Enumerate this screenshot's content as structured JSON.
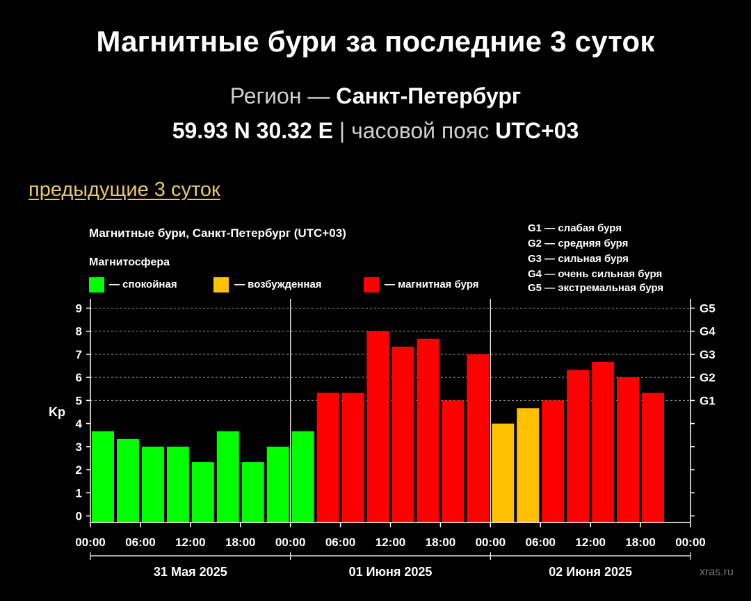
{
  "header": {
    "title": "Магнитные бури за последние 3 суток",
    "region_label": "Регион",
    "region_sep": "—",
    "region_name": "Санкт-Петербург",
    "coords": "59.93 N 30.32 E",
    "coords_sep": "|",
    "tz_label": "часовой пояс",
    "tz_value": "UTC+03"
  },
  "nav": {
    "prev_link": "предыдущие 3 суток"
  },
  "chart_data": {
    "type": "bar",
    "title": "Магнитные бури, Санкт-Петербург (UTC+03)",
    "legend_title": "Магнитосфера",
    "legend": [
      {
        "label": "— спокойная",
        "color": "#00ff00"
      },
      {
        "label": "— возбужденная",
        "color": "#ffc000"
      },
      {
        "label": "— магнитная буря",
        "color": "#ff0000"
      }
    ],
    "g_scale_legend": [
      "G1 — слабая буря",
      "G2 — средняя буря",
      "G3 — сильная буря",
      "G4 — очень сильная буря",
      "G5 — экстремальная буря"
    ],
    "ylabel": "Kp",
    "ylim": [
      0,
      9
    ],
    "yticks": [
      "0",
      "1",
      "2",
      "3",
      "4",
      "5",
      "6",
      "7",
      "8",
      "9"
    ],
    "right_ticks": [
      {
        "value": 5,
        "label": "G1"
      },
      {
        "value": 6,
        "label": "G2"
      },
      {
        "value": 7,
        "label": "G3"
      },
      {
        "value": 8,
        "label": "G4"
      },
      {
        "value": 9,
        "label": "G5"
      }
    ],
    "xtick_labels": [
      "00:00",
      "06:00",
      "12:00",
      "18:00",
      "00:00",
      "06:00",
      "12:00",
      "18:00",
      "00:00",
      "06:00",
      "12:00",
      "18:00",
      "00:00"
    ],
    "days": [
      "31 Мая 2025",
      "01 Июня 2025",
      "02 Июня 2025"
    ],
    "colors": {
      "quiet": "#00ff00",
      "active": "#ffc000",
      "storm": "#ff0000"
    },
    "values": [
      3.67,
      3.33,
      3.0,
      3.0,
      2.33,
      3.67,
      2.33,
      3.0,
      3.67,
      5.33,
      5.33,
      8.0,
      7.33,
      7.67,
      5.0,
      7.0,
      4.0,
      4.67,
      5.0,
      6.33,
      6.67,
      6.0,
      5.33
    ],
    "levels": [
      "quiet",
      "quiet",
      "quiet",
      "quiet",
      "quiet",
      "quiet",
      "quiet",
      "quiet",
      "quiet",
      "storm",
      "storm",
      "storm",
      "storm",
      "storm",
      "storm",
      "storm",
      "active",
      "active",
      "storm",
      "storm",
      "storm",
      "storm",
      "storm"
    ],
    "grid": true
  },
  "watermark": "xras.ru"
}
